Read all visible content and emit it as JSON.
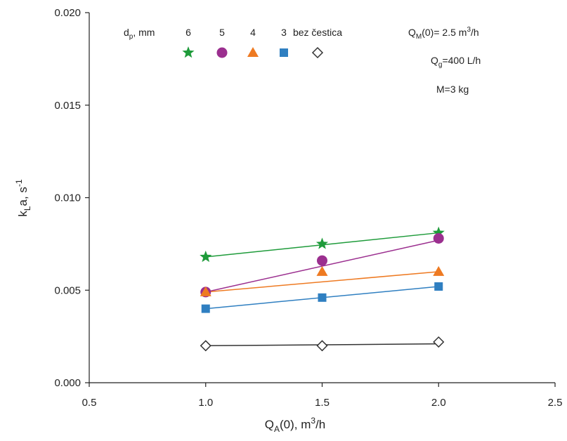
{
  "chart_data": {
    "type": "scatter",
    "x_axis": {
      "label": "Q",
      "label_sub": "A",
      "label_rest": "(0), m",
      "label_sup": "3",
      "label_end": "/h",
      "range": [
        0.5,
        2.5
      ],
      "ticks": [
        "0.5",
        "1.0",
        "1.5",
        "2.0",
        "2.5"
      ]
    },
    "y_axis": {
      "label": "k",
      "label_sub": "L",
      "label_rest": "a, s",
      "label_sup": "-1",
      "range": [
        0.0,
        0.02
      ],
      "ticks": [
        "0.000",
        "0.005",
        "0.010",
        "0.015",
        "0.020"
      ]
    },
    "legend": {
      "title": "d",
      "title_sub": "p",
      "title_rest": ", mm",
      "position": "top-left"
    },
    "annotations": {
      "qm_main": "Q",
      "qm_sub": "M",
      "qm_rest": "(0)= 2.5 m",
      "qm_sup": "3",
      "qm_end": "/h",
      "qg_main": "Q",
      "qg_sub": "g",
      "qg_rest": "=400 L/h",
      "m_text": "M=3 kg"
    },
    "grid": false,
    "series": [
      {
        "name": "6",
        "marker": "star",
        "color": "#1e9b3a",
        "x": [
          1.0,
          1.5,
          2.0
        ],
        "y": [
          0.0068,
          0.0075,
          0.0081
        ]
      },
      {
        "name": "5",
        "marker": "circle",
        "color": "#9b2f8f",
        "x": [
          1.0,
          1.5,
          2.0
        ],
        "y": [
          0.0049,
          0.0066,
          0.0078
        ]
      },
      {
        "name": "4",
        "marker": "triangle",
        "color": "#ee7a22",
        "x": [
          1.0,
          1.5,
          2.0
        ],
        "y": [
          0.0049,
          0.006,
          0.006
        ]
      },
      {
        "name": "3",
        "marker": "square",
        "color": "#2f7fc1",
        "x": [
          1.0,
          1.5,
          2.0
        ],
        "y": [
          0.004,
          0.0046,
          0.0052
        ]
      },
      {
        "name": "bez čestica",
        "marker": "diamond",
        "color": "#333333",
        "x": [
          1.0,
          1.5,
          2.0
        ],
        "y": [
          0.002,
          0.002,
          0.0022
        ]
      }
    ],
    "fit_lines": [
      {
        "series": "6",
        "color": "#1e9b3a",
        "x": [
          1.0,
          2.0
        ],
        "y": [
          0.0068,
          0.0081
        ]
      },
      {
        "series": "5",
        "color": "#9b2f8f",
        "x": [
          1.0,
          2.0
        ],
        "y": [
          0.0049,
          0.0077
        ]
      },
      {
        "series": "4",
        "color": "#ee7a22",
        "x": [
          1.0,
          2.0
        ],
        "y": [
          0.0049,
          0.006
        ]
      },
      {
        "series": "3",
        "color": "#2f7fc1",
        "x": [
          1.0,
          2.0
        ],
        "y": [
          0.004,
          0.0052
        ]
      },
      {
        "series": "bez čestica",
        "color": "#333333",
        "x": [
          1.0,
          2.0
        ],
        "y": [
          0.002,
          0.0021
        ]
      }
    ]
  }
}
